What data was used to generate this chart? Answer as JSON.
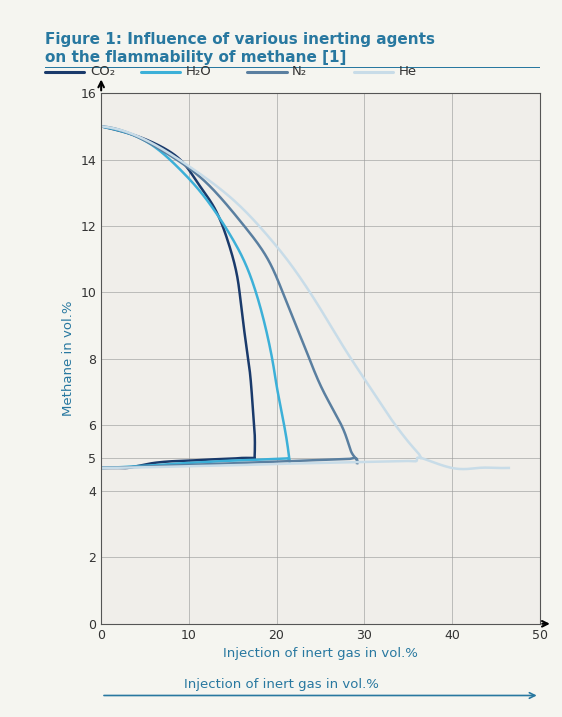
{
  "title_line1": "Figure 1: Influence of various inerting agents",
  "title_line2": "on the flammability of methane [1]",
  "title_color": "#2878a0",
  "xlabel": "Injection of inert gas in vol.%",
  "ylabel": "Methane in vol.%",
  "axis_label_color": "#2878a0",
  "xlim": [
    0,
    50
  ],
  "ylim": [
    0,
    16
  ],
  "xticks": [
    0,
    10,
    20,
    30,
    40,
    50
  ],
  "yticks": [
    0,
    2,
    4,
    5,
    6,
    8,
    10,
    12,
    14,
    16
  ],
  "background_color": "#f5f5f0",
  "plot_bg": "#f0eeea",
  "legend_labels": [
    "CO₂",
    "H₂O",
    "N₂",
    "He"
  ],
  "legend_colors": [
    "#1a3a6b",
    "#3cb0d8",
    "#5a7fa0",
    "#c8dce8"
  ],
  "CO2": {
    "color": "#1a3a6b",
    "lw": 1.8,
    "upper_x": [
      0,
      3,
      6,
      9,
      11,
      13,
      14.5,
      15.5,
      16.0,
      16.5,
      17.0,
      17.3,
      17.5,
      17.5
    ],
    "upper_y": [
      15.0,
      14.8,
      14.5,
      14.0,
      13.3,
      12.5,
      11.5,
      10.5,
      9.5,
      8.5,
      7.5,
      6.5,
      5.8,
      5.0
    ],
    "lower_x": [
      0,
      1,
      2,
      3,
      4,
      5,
      6,
      8,
      10,
      12,
      14,
      15,
      16,
      17,
      17.5
    ],
    "lower_y": [
      4.7,
      4.7,
      4.7,
      4.7,
      4.75,
      4.8,
      4.85,
      4.9,
      4.92,
      4.95,
      4.97,
      4.98,
      5.0,
      5.0,
      5.0
    ]
  },
  "H2O": {
    "color": "#3cb0d8",
    "lw": 1.8,
    "upper_x": [
      0,
      3,
      6,
      9,
      12,
      15,
      17,
      18.5,
      19.5,
      20.0,
      20.5,
      21.0,
      21.3,
      21.5
    ],
    "upper_y": [
      15.0,
      14.8,
      14.4,
      13.7,
      12.8,
      11.6,
      10.5,
      9.2,
      8.0,
      7.2,
      6.5,
      5.8,
      5.3,
      4.9
    ],
    "lower_x": [
      0,
      2,
      4,
      6,
      8,
      10,
      12,
      14,
      16,
      18,
      20,
      21,
      21.3,
      21.5
    ],
    "lower_y": [
      4.7,
      4.72,
      4.75,
      4.78,
      4.82,
      4.85,
      4.88,
      4.91,
      4.93,
      4.95,
      4.97,
      4.98,
      4.99,
      4.9
    ]
  },
  "N2": {
    "color": "#5a7fa0",
    "lw": 1.8,
    "upper_x": [
      0,
      4,
      8,
      12,
      16,
      19,
      21,
      23,
      25,
      27,
      28,
      28.5,
      29.0,
      29.2
    ],
    "upper_y": [
      15.0,
      14.7,
      14.1,
      13.3,
      12.1,
      11.0,
      9.8,
      8.5,
      7.2,
      6.2,
      5.6,
      5.2,
      5.0,
      4.85
    ],
    "lower_x": [
      0,
      3,
      6,
      9,
      12,
      15,
      18,
      21,
      24,
      26,
      27,
      28,
      28.5,
      29.0,
      29.2
    ],
    "lower_y": [
      4.7,
      4.72,
      4.75,
      4.78,
      4.81,
      4.84,
      4.87,
      4.9,
      4.93,
      4.95,
      4.96,
      4.97,
      4.98,
      5.0,
      4.85
    ]
  },
  "He": {
    "color": "#c8dce8",
    "lw": 1.8,
    "upper_x": [
      0,
      5,
      10,
      15,
      19,
      22,
      25,
      28,
      31,
      33,
      35,
      36,
      36.5
    ],
    "upper_y": [
      15.0,
      14.6,
      13.8,
      12.8,
      11.7,
      10.7,
      9.5,
      8.2,
      7.0,
      6.2,
      5.5,
      5.2,
      5.0
    ],
    "lower_x": [
      0,
      5,
      10,
      15,
      20,
      25,
      30,
      33,
      35,
      36,
      36.5,
      40,
      43,
      45,
      46,
      46.5
    ],
    "lower_y": [
      4.7,
      4.72,
      4.75,
      4.78,
      4.82,
      4.85,
      4.88,
      4.9,
      4.91,
      4.92,
      5.0,
      4.7,
      4.7,
      4.7,
      4.7,
      4.7
    ]
  }
}
